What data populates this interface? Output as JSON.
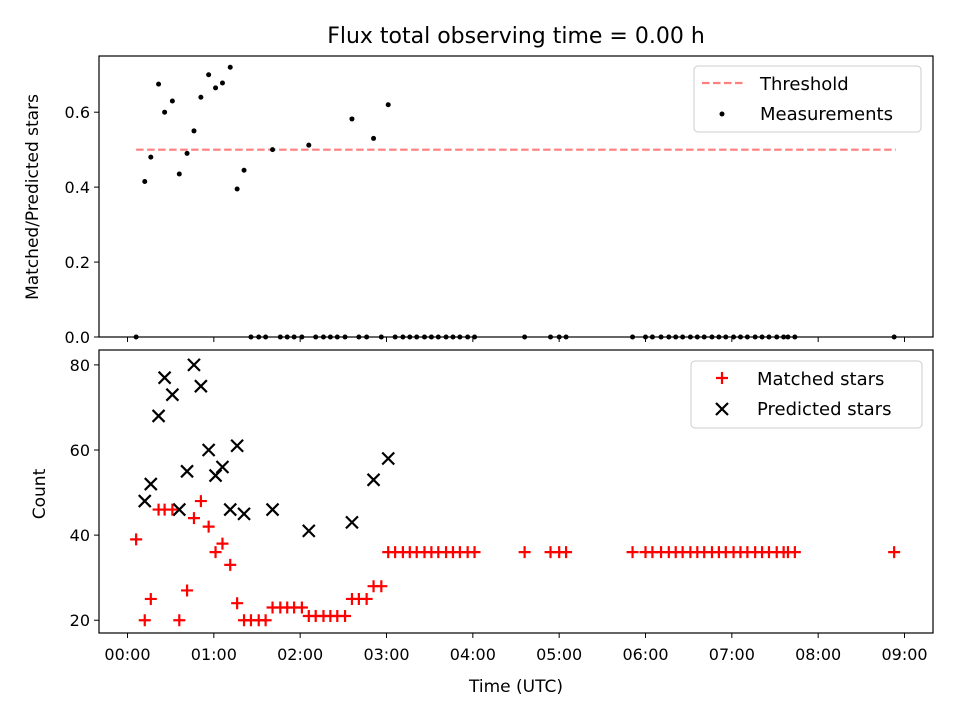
{
  "figure": {
    "title": "Flux total observing time = 0.00 h"
  },
  "chart_data": [
    {
      "type": "scatter",
      "panel": "top",
      "ylabel": "Matched/Predicted stars",
      "xlabel": "",
      "xlim": [
        -0.33,
        9.33
      ],
      "ylim": [
        0,
        0.75
      ],
      "yticks": [
        0.0,
        0.2,
        0.4,
        0.6
      ],
      "ytick_labels": [
        "0.0",
        "0.2",
        "0.4",
        "0.6"
      ],
      "grid": false,
      "legend": "upper right",
      "series": [
        {
          "name": "Threshold",
          "kind": "dashed-line",
          "color": "#ff7f7f",
          "x": [
            0.1,
            8.9
          ],
          "values": [
            0.5,
            0.5
          ]
        },
        {
          "name": "Measurements",
          "kind": "points",
          "color": "#000000",
          "x": [
            0.1,
            0.2,
            0.27,
            0.36,
            0.43,
            0.52,
            0.6,
            0.69,
            0.77,
            0.85,
            0.94,
            1.02,
            1.1,
            1.19,
            1.27,
            1.35,
            1.43,
            1.52,
            1.6,
            1.68,
            1.77,
            1.85,
            1.93,
            2.02,
            2.1,
            2.18,
            2.27,
            2.35,
            2.43,
            2.52,
            2.6,
            2.68,
            2.77,
            2.85,
            2.94,
            3.02,
            3.1,
            3.19,
            3.27,
            3.35,
            3.44,
            3.52,
            3.6,
            3.69,
            3.77,
            3.85,
            3.94,
            4.02,
            4.6,
            4.9,
            5.0,
            5.08,
            5.85,
            6.0,
            6.08,
            6.18,
            6.27,
            6.35,
            6.43,
            6.52,
            6.6,
            6.68,
            6.77,
            6.85,
            6.93,
            7.02,
            7.1,
            7.18,
            7.27,
            7.35,
            7.43,
            7.52,
            7.6,
            7.65,
            7.73,
            8.88
          ],
          "values": [
            0.0,
            0.415,
            0.48,
            0.675,
            0.6,
            0.63,
            0.435,
            0.49,
            0.55,
            0.64,
            0.7,
            0.665,
            0.678,
            0.72,
            0.395,
            0.445,
            0.0,
            0.0,
            0.0,
            0.5,
            0.0,
            0.0,
            0.0,
            0.0,
            0.512,
            0.0,
            0.0,
            0.0,
            0.0,
            0.0,
            0.582,
            0.0,
            0.0,
            0.53,
            0.0,
            0.62,
            0.0,
            0.0,
            0.0,
            0.0,
            0.0,
            0.0,
            0.0,
            0.0,
            0.0,
            0.0,
            0.0,
            0.0,
            0.0,
            0.0,
            0.0,
            0.0,
            0.0,
            0.0,
            0.0,
            0.0,
            0.0,
            0.0,
            0.0,
            0.0,
            0.0,
            0.0,
            0.0,
            0.0,
            0.0,
            0.0,
            0.0,
            0.0,
            0.0,
            0.0,
            0.0,
            0.0,
            0.0,
            0.0,
            0.0,
            0.0
          ]
        }
      ]
    },
    {
      "type": "scatter",
      "panel": "bottom",
      "ylabel": "Count",
      "xlabel": "Time (UTC)",
      "xlim": [
        -0.33,
        9.33
      ],
      "ylim": [
        17,
        83.5
      ],
      "yticks": [
        20,
        40,
        60,
        80
      ],
      "ytick_labels": [
        "20",
        "40",
        "60",
        "80"
      ],
      "xticks": [
        0,
        1,
        2,
        3,
        4,
        5,
        6,
        7,
        8,
        9
      ],
      "xtick_labels": [
        "00:00",
        "01:00",
        "02:00",
        "03:00",
        "04:00",
        "05:00",
        "06:00",
        "07:00",
        "08:00",
        "09:00"
      ],
      "grid": false,
      "legend": "upper right",
      "series": [
        {
          "name": "Matched stars",
          "marker": "+",
          "color": "#ff0000",
          "x": [
            0.1,
            0.2,
            0.27,
            0.36,
            0.43,
            0.52,
            0.6,
            0.69,
            0.77,
            0.85,
            0.94,
            1.02,
            1.1,
            1.19,
            1.27,
            1.35,
            1.43,
            1.52,
            1.6,
            1.68,
            1.77,
            1.85,
            1.93,
            2.02,
            2.1,
            2.18,
            2.27,
            2.35,
            2.43,
            2.52,
            2.6,
            2.68,
            2.77,
            2.85,
            2.94,
            3.02,
            3.1,
            3.19,
            3.27,
            3.35,
            3.44,
            3.52,
            3.6,
            3.69,
            3.77,
            3.85,
            3.94,
            4.02,
            4.6,
            4.9,
            5.0,
            5.08,
            5.85,
            6.0,
            6.08,
            6.18,
            6.27,
            6.35,
            6.43,
            6.52,
            6.6,
            6.68,
            6.77,
            6.85,
            6.93,
            7.02,
            7.1,
            7.18,
            7.27,
            7.35,
            7.43,
            7.52,
            7.6,
            7.65,
            7.73,
            8.88
          ],
          "values": [
            39,
            20,
            25,
            46,
            46,
            46,
            20,
            27,
            44,
            48,
            42,
            36,
            38,
            33,
            24,
            20,
            20,
            20,
            20,
            23,
            23,
            23,
            23,
            23,
            21,
            21,
            21,
            21,
            21,
            21,
            25,
            25,
            25,
            28,
            28,
            36,
            36,
            36,
            36,
            36,
            36,
            36,
            36,
            36,
            36,
            36,
            36,
            36,
            36,
            36,
            36,
            36,
            36,
            36,
            36,
            36,
            36,
            36,
            36,
            36,
            36,
            36,
            36,
            36,
            36,
            36,
            36,
            36,
            36,
            36,
            36,
            36,
            36,
            36,
            36,
            36
          ]
        },
        {
          "name": "Predicted stars",
          "marker": "x",
          "color": "#000000",
          "x": [
            0.2,
            0.27,
            0.36,
            0.43,
            0.52,
            0.6,
            0.69,
            0.77,
            0.85,
            0.94,
            1.02,
            1.1,
            1.19,
            1.27,
            1.35,
            1.68,
            2.1,
            2.6,
            2.85,
            3.02
          ],
          "values": [
            48,
            52,
            68,
            77,
            73,
            46,
            55,
            80,
            75,
            60,
            54,
            56,
            46,
            61,
            45,
            46,
            41,
            43,
            53,
            58
          ]
        }
      ]
    }
  ]
}
